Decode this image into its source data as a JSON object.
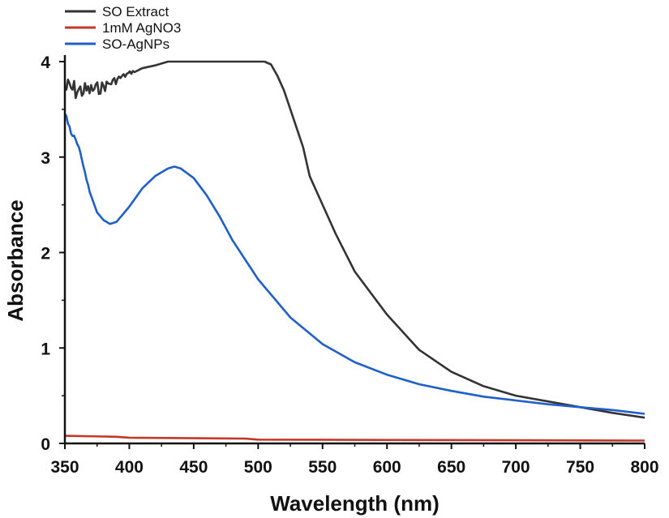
{
  "chart_data": {
    "type": "line",
    "title": "",
    "xlabel": "Wavelength (nm)",
    "ylabel": "Absorbance",
    "xlim": [
      350,
      800
    ],
    "ylim": [
      0,
      4
    ],
    "x_ticks": [
      "350",
      "400",
      "450",
      "500",
      "550",
      "600",
      "650",
      "700",
      "750",
      "800"
    ],
    "y_ticks": [
      "0",
      "1",
      "2",
      "3",
      "4"
    ],
    "grid": false,
    "legend_position": "top-left",
    "series": [
      {
        "name": "SO Extract",
        "color": "#333333",
        "noisy_until": 405,
        "x": [
          350,
          360,
          370,
          380,
          390,
          400,
          410,
          420,
          430,
          450,
          470,
          490,
          500,
          505,
          510,
          515,
          520,
          525,
          530,
          535,
          540,
          550,
          560,
          575,
          600,
          625,
          650,
          675,
          700,
          725,
          750,
          775,
          800
        ],
        "y": [
          3.85,
          3.8,
          3.78,
          3.8,
          3.85,
          3.9,
          3.93,
          3.96,
          4.0,
          4.0,
          4.0,
          4.0,
          4.0,
          4.0,
          3.97,
          3.85,
          3.7,
          3.5,
          3.3,
          3.1,
          2.8,
          2.5,
          2.2,
          1.8,
          1.35,
          0.98,
          0.75,
          0.6,
          0.5,
          0.44,
          0.38,
          0.32,
          0.27
        ]
      },
      {
        "name": "1mM AgNO3",
        "color": "#c0392b",
        "x": [
          350,
          390,
          400,
          490,
          500,
          800
        ],
        "y": [
          0.08,
          0.07,
          0.06,
          0.05,
          0.04,
          0.03
        ]
      },
      {
        "name": "SO-AgNPs",
        "color": "#1f5fc8",
        "noisy_until": 370,
        "x": [
          350,
          355,
          360,
          365,
          370,
          375,
          380,
          385,
          390,
          400,
          410,
          420,
          430,
          435,
          440,
          450,
          460,
          470,
          480,
          500,
          525,
          550,
          575,
          600,
          625,
          650,
          675,
          700,
          725,
          750,
          775,
          800
        ],
        "y": [
          3.5,
          3.3,
          3.15,
          2.9,
          2.6,
          2.42,
          2.34,
          2.3,
          2.32,
          2.48,
          2.67,
          2.8,
          2.88,
          2.9,
          2.88,
          2.78,
          2.6,
          2.38,
          2.13,
          1.72,
          1.32,
          1.04,
          0.85,
          0.72,
          0.62,
          0.55,
          0.49,
          0.45,
          0.41,
          0.38,
          0.35,
          0.31
        ]
      }
    ]
  }
}
